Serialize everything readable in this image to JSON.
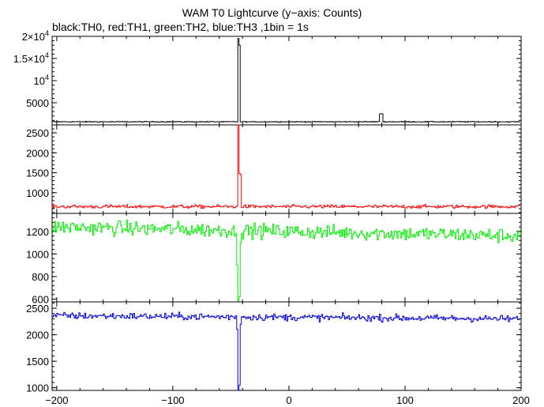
{
  "title": "WAM T0 Lightcurve (y−axis: Counts)",
  "subtitle": "black:TH0, red:TH1, green:TH2, blue:TH3 ,1bin = 1s",
  "chart_data": {
    "type": "line",
    "x_range": [
      -204,
      200
    ],
    "x_ticks": [
      -200,
      -100,
      0,
      100,
      200
    ],
    "x_tick_labels": [
      "−200",
      "−100",
      "0",
      "100",
      "200"
    ],
    "panels": [
      {
        "name": "TH0",
        "color": "#000000",
        "ylim": [
          0,
          20000
        ],
        "y_ticks": [
          5000,
          10000,
          15000,
          20000
        ],
        "y_tick_labels": [
          {
            "mantissa": "5000",
            "exp": ""
          },
          {
            "mantissa": "10",
            "exp": "4"
          },
          {
            "mantissa": "1.5×10",
            "exp": "4"
          },
          {
            "mantissa": "2×10",
            "exp": "4"
          }
        ],
        "baseline": 700,
        "noise": 60,
        "features": [
          {
            "x": -44,
            "value": 19500
          },
          {
            "x": -43,
            "value": 18000
          },
          {
            "x": -42,
            "value": 700
          },
          {
            "x": 78,
            "value": 2500
          },
          {
            "x": 79,
            "value": 2500
          },
          {
            "x": 80,
            "value": 2500
          }
        ]
      },
      {
        "name": "TH1",
        "color": "#ff0000",
        "ylim": [
          480,
          2700
        ],
        "y_ticks": [
          1000,
          1500,
          2000,
          2500
        ],
        "y_tick_labels": [
          {
            "mantissa": "1000",
            "exp": ""
          },
          {
            "mantissa": "1500",
            "exp": ""
          },
          {
            "mantissa": "2000",
            "exp": ""
          },
          {
            "mantissa": "2500",
            "exp": ""
          }
        ],
        "baseline": 650,
        "noise": 30,
        "features": [
          {
            "x": -44,
            "value": 2700
          },
          {
            "x": -43,
            "value": 1480
          },
          {
            "x": -42,
            "value": 1450
          }
        ]
      },
      {
        "name": "TH2",
        "color": "#00ee00",
        "ylim": [
          575,
          1360
        ],
        "y_ticks": [
          600,
          800,
          1000,
          1200
        ],
        "y_tick_labels": [
          {
            "mantissa": "600",
            "exp": ""
          },
          {
            "mantissa": "800",
            "exp": ""
          },
          {
            "mantissa": "1000",
            "exp": ""
          },
          {
            "mantissa": "1200",
            "exp": ""
          }
        ],
        "baseline_start": 1240,
        "baseline_end": 1160,
        "noise": 45,
        "features": [
          {
            "x": -46,
            "value": 1180
          },
          {
            "x": -45,
            "value": 900
          },
          {
            "x": -44,
            "value": 575
          },
          {
            "x": -43,
            "value": 620
          },
          {
            "x": -42,
            "value": 1100
          }
        ]
      },
      {
        "name": "TH3",
        "color": "#0000dd",
        "ylim": [
          950,
          2620
        ],
        "y_ticks": [
          1000,
          1500,
          2000,
          2500
        ],
        "y_tick_labels": [
          {
            "mantissa": "1000",
            "exp": ""
          },
          {
            "mantissa": "1500",
            "exp": ""
          },
          {
            "mantissa": "2000",
            "exp": ""
          },
          {
            "mantissa": "2500",
            "exp": ""
          }
        ],
        "baseline_start": 2360,
        "baseline_end": 2300,
        "noise": 45,
        "features": [
          {
            "x": -45,
            "value": 2100
          },
          {
            "x": -44,
            "value": 950
          },
          {
            "x": -43,
            "value": 1050
          },
          {
            "x": -42,
            "value": 2200
          }
        ]
      }
    ]
  }
}
